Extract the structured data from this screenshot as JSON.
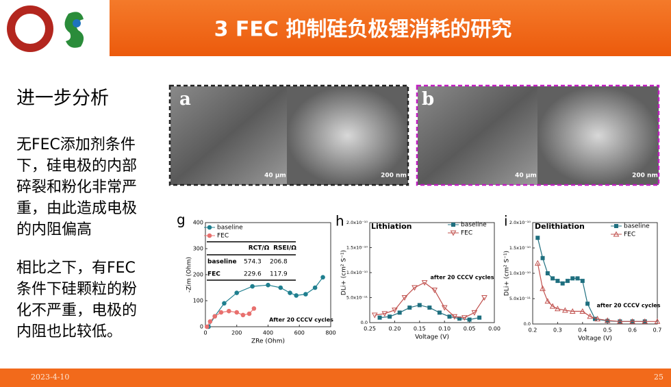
{
  "header": {
    "title": "3 FEC 抑制硅负极锂消耗的研究"
  },
  "sidebar": {
    "heading": "进一步分析",
    "paragraphs": [
      [
        "无FEC添加剂条件",
        "下，硅电极的内部",
        "碎裂和粉化非常严",
        "重，由此造成电极",
        "的内阻偏高"
      ],
      [
        "相比之下，有FEC",
        "条件下硅颗粒的粉",
        "化不严重，电极的",
        "内阻也比较低。"
      ]
    ]
  },
  "images": [
    {
      "label": "a",
      "scale_bars": [
        "40 μm",
        "200 nm"
      ]
    },
    {
      "label": "b",
      "scale_bars": [
        "40 μm",
        "200 nm"
      ]
    }
  ],
  "plots": [
    {
      "panel": "g",
      "xlabel": "ZRe (Ohm)",
      "ylabel": "-Zim (Ohm)",
      "annotation": "After 20 CCCV cycles",
      "xlim": [
        0,
        800
      ],
      "xticks": [
        0,
        200,
        400,
        600,
        800
      ],
      "ylim": [
        0,
        400
      ],
      "yticks": [
        0,
        100,
        200,
        300,
        400
      ],
      "series": [
        {
          "name": "baseline",
          "color": "#1f7f8f",
          "marker": "circle",
          "x": [
            20,
            60,
            120,
            200,
            300,
            400,
            480,
            540,
            580,
            640,
            700,
            750
          ],
          "values": [
            0,
            40,
            90,
            130,
            155,
            160,
            150,
            130,
            120,
            125,
            150,
            190
          ]
        },
        {
          "name": "FEC",
          "color": "#e8706e",
          "marker": "circle",
          "x": [
            10,
            30,
            60,
            100,
            150,
            200,
            240,
            280,
            310
          ],
          "values": [
            0,
            20,
            40,
            55,
            60,
            55,
            45,
            50,
            70
          ]
        }
      ],
      "table": {
        "header": [
          "RCT/Ω",
          "RSEI/Ω"
        ],
        "rows": [
          [
            "baseline",
            "574.3",
            "206.8"
          ],
          [
            "FEC",
            "229.6",
            "117.9"
          ]
        ]
      }
    },
    {
      "panel": "h",
      "title": "Lithiation",
      "xlabel": "Voltage (V)",
      "ylabel": "DLi+ (cm² S⁻¹)",
      "annotation": "after 20 CCCV cycles",
      "xlim": [
        0.25,
        0.0
      ],
      "xticks": [
        {
          "value": 0.25,
          "label": "0.25"
        },
        {
          "value": 0.2,
          "label": "0.20"
        },
        {
          "value": 0.15,
          "label": "0.15"
        },
        {
          "value": 0.1,
          "label": "0.10"
        },
        {
          "value": 0.05,
          "label": "0.05"
        },
        {
          "value": 0,
          "label": "0.00"
        }
      ],
      "ylim": [
        0,
        2e-10
      ],
      "yticks": [
        {
          "value": 0,
          "label": "0.0"
        },
        {
          "value": 5e-11,
          "label": "5.0x10⁻¹¹"
        },
        {
          "value": 1e-10,
          "label": "1.0x10⁻¹⁰"
        },
        {
          "value": 1.5e-10,
          "label": "1.5x10⁻¹⁰"
        },
        {
          "value": 2e-10,
          "label": "2.0x10⁻¹⁰"
        }
      ],
      "series": [
        {
          "name": "baseline",
          "color": "#1f6f7f",
          "marker": "square",
          "x": [
            0.23,
            0.21,
            0.19,
            0.17,
            0.15,
            0.13,
            0.11,
            0.09,
            0.07,
            0.05,
            0.03
          ],
          "values": [
            1e-11,
            1.2e-11,
            2e-11,
            3e-11,
            3.5e-11,
            3e-11,
            2e-11,
            1.2e-11,
            8e-12,
            6e-12,
            1e-11
          ]
        },
        {
          "name": "FEC",
          "color": "#c0504d",
          "marker": "triangle-down",
          "x": [
            0.24,
            0.22,
            0.2,
            0.18,
            0.16,
            0.14,
            0.12,
            0.1,
            0.08,
            0.06,
            0.04,
            0.02
          ],
          "values": [
            1.5e-11,
            1.8e-11,
            2.5e-11,
            5e-11,
            7e-11,
            8e-11,
            6.5e-11,
            3e-11,
            1.2e-11,
            1e-11,
            2e-11,
            5e-11
          ]
        }
      ]
    },
    {
      "panel": "i",
      "title": "Delithiation",
      "xlabel": "Voltage (V)",
      "ylabel": "DLi+ (cm² S⁻¹)",
      "annotation": "after 20 CCCV cycles",
      "xlim": [
        0.2,
        0.7
      ],
      "xticks": [
        0.2,
        0.3,
        0.4,
        0.5,
        0.6,
        0.7
      ],
      "ylim": [
        0,
        2e-10
      ],
      "yticks": [
        {
          "value": 0,
          "label": "0.0"
        },
        {
          "value": 5e-11,
          "label": "5.0x10⁻¹¹"
        },
        {
          "value": 1e-10,
          "label": "1.0x10⁻¹⁰"
        },
        {
          "value": 1.5e-10,
          "label": "1.5x10⁻¹⁰"
        },
        {
          "value": 2e-10,
          "label": "2.0x10⁻¹⁰"
        }
      ],
      "series": [
        {
          "name": "baseline",
          "color": "#1f6f7f",
          "marker": "square",
          "x": [
            0.22,
            0.24,
            0.26,
            0.28,
            0.3,
            0.32,
            0.34,
            0.36,
            0.38,
            0.4,
            0.42,
            0.45,
            0.5,
            0.55,
            0.6,
            0.65
          ],
          "values": [
            1.7e-10,
            1.3e-10,
            1e-10,
            9e-11,
            8.5e-11,
            8e-11,
            8.5e-11,
            9e-11,
            9e-11,
            8.5e-11,
            4e-11,
            1e-11,
            6e-12,
            5e-12,
            5e-12,
            5e-12
          ]
        },
        {
          "name": "FEC",
          "color": "#c0504d",
          "marker": "triangle-up",
          "x": [
            0.22,
            0.24,
            0.26,
            0.28,
            0.3,
            0.33,
            0.36,
            0.4,
            0.43,
            0.46,
            0.5,
            0.55,
            0.6,
            0.65,
            0.7
          ],
          "values": [
            1.2e-10,
            7e-11,
            4.5e-11,
            3.5e-11,
            3e-11,
            2.7e-11,
            2.5e-11,
            2.5e-11,
            1.5e-11,
            1e-11,
            7e-12,
            5e-12,
            5e-12,
            5e-12,
            5e-12
          ]
        }
      ]
    }
  ],
  "footer": {
    "date": "2023-4-10",
    "page": "25"
  }
}
